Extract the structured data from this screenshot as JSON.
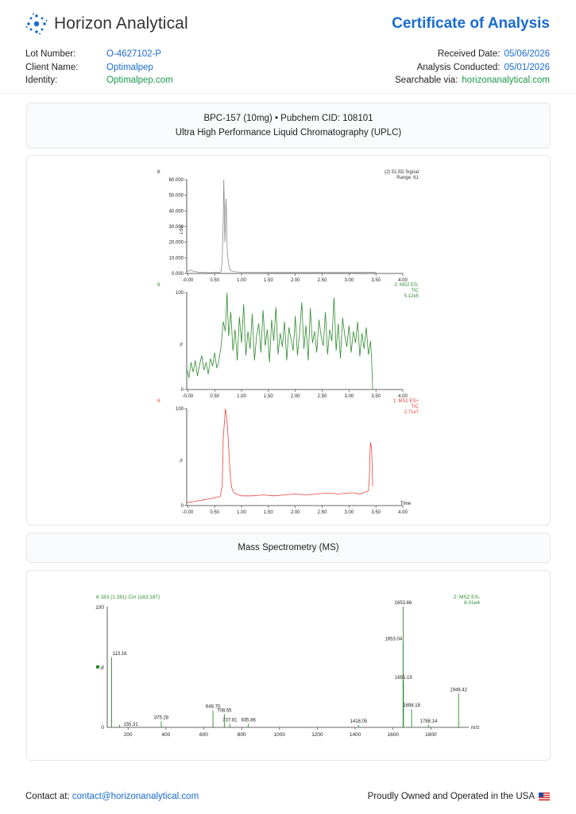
{
  "header": {
    "company": "Horizon Analytical",
    "title": "Certificate of Analysis"
  },
  "meta_left": [
    {
      "label": "Lot Number:",
      "value": "O-4627102-P"
    },
    {
      "label": "Client Name:",
      "value": "Optimalpep"
    },
    {
      "label": "Identity:",
      "value": "Optimalpep.com"
    }
  ],
  "meta_right": [
    {
      "label": "Received Date:",
      "value": "05/06/2026"
    },
    {
      "label": "Analysis Conducted:",
      "value": "05/01/2026"
    },
    {
      "label": "Searchable via:",
      "value": "horizonanalytical.com"
    }
  ],
  "sample": {
    "line1": "BPC-157 (10mg) • Pubchem CID: 108101",
    "line2": "Ultra High Performance Liquid Chromatography (UPLC)"
  },
  "ms_title": "Mass Spectrometry (MS)",
  "footer": {
    "contact_label": "Contact at:",
    "contact_email": "contact@horizonanalytical.com",
    "tagline": "Proudly Owned and Operated in the USA"
  },
  "colors": {
    "accent": "#1a6bd1",
    "green": "#1a9a4a",
    "elsd": "#8a8a8a",
    "ms_neg": "#2e8b2e",
    "ms_pos": "#e8453c"
  },
  "chart_data": [
    {
      "type": "line",
      "panel_number": "6",
      "legend": [
        "(2) ELSD Signal",
        "Range: 61"
      ],
      "ylabel": "LSU",
      "x_ticks": [
        "-0.00",
        "0.50",
        "1.00",
        "1.50",
        "2.00",
        "2.50",
        "3.00",
        "3.50",
        "4.00"
      ],
      "y_ticks": [
        "0.000",
        "10.000",
        "20.000",
        "30.000",
        "40.000",
        "50.000",
        "60.000"
      ],
      "xlim": [
        -0.02,
        4.0
      ],
      "ylim": [
        0,
        60
      ],
      "series": [
        {
          "x": [
            -0.02,
            0.05,
            0.1,
            0.2,
            0.3,
            0.4,
            0.45,
            0.5,
            0.55,
            0.6,
            0.62,
            0.64,
            0.66,
            0.67,
            0.68,
            0.69,
            0.7,
            0.71,
            0.72,
            0.73,
            0.74,
            0.76,
            0.78,
            0.8,
            0.85,
            0.9,
            1.0,
            1.2,
            1.5,
            2.0,
            2.5,
            3.0,
            3.3,
            3.4,
            3.45,
            3.5
          ],
          "y": [
            1,
            2.2,
            1.5,
            0.8,
            0.6,
            0.5,
            0.5,
            0.8,
            0.6,
            0.6,
            1.5,
            8,
            35,
            60,
            42,
            20,
            30,
            48,
            38,
            20,
            12,
            6,
            3,
            1.8,
            1.2,
            1,
            0.8,
            0.7,
            0.6,
            0.6,
            0.6,
            0.6,
            0.6,
            0.8,
            0.6,
            0.6
          ]
        }
      ]
    },
    {
      "type": "line",
      "panel_number": "6",
      "legend": [
        "2: MS2 ES-",
        "TIC",
        "5.12e5"
      ],
      "ylabel": "%",
      "x_ticks": [
        "-0.00",
        "0.50",
        "1.00",
        "1.50",
        "2.00",
        "2.50",
        "3.00",
        "3.50",
        "4.00"
      ],
      "y_ticks": [
        "0",
        "100"
      ],
      "xlim": [
        -0.02,
        4.0
      ],
      "ylim": [
        0,
        100
      ],
      "series": [
        {
          "x": [
            -0.02,
            0.02,
            0.06,
            0.1,
            0.14,
            0.18,
            0.22,
            0.26,
            0.3,
            0.34,
            0.38,
            0.42,
            0.46,
            0.5,
            0.54,
            0.58,
            0.62,
            0.66,
            0.7,
            0.73,
            0.76,
            0.8,
            0.84,
            0.88,
            0.92,
            0.96,
            1.0,
            1.04,
            1.08,
            1.12,
            1.16,
            1.2,
            1.24,
            1.28,
            1.32,
            1.36,
            1.4,
            1.44,
            1.48,
            1.52,
            1.56,
            1.6,
            1.64,
            1.68,
            1.72,
            1.76,
            1.8,
            1.84,
            1.88,
            1.92,
            1.96,
            2.0,
            2.04,
            2.08,
            2.12,
            2.16,
            2.2,
            2.24,
            2.28,
            2.32,
            2.36,
            2.4,
            2.44,
            2.48,
            2.52,
            2.56,
            2.6,
            2.64,
            2.68,
            2.72,
            2.76,
            2.8,
            2.84,
            2.88,
            2.92,
            2.96,
            3.0,
            3.04,
            3.08,
            3.12,
            3.16,
            3.2,
            3.24,
            3.28,
            3.32,
            3.36,
            3.4,
            3.42,
            3.44
          ],
          "y": [
            22,
            12,
            28,
            18,
            30,
            14,
            25,
            35,
            20,
            28,
            16,
            32,
            24,
            38,
            22,
            30,
            45,
            70,
            60,
            100,
            55,
            80,
            40,
            62,
            30,
            75,
            48,
            88,
            35,
            60,
            42,
            78,
            30,
            55,
            68,
            38,
            82,
            45,
            62,
            28,
            72,
            50,
            85,
            36,
            58,
            44,
            70,
            30,
            64,
            52,
            40,
            76,
            35,
            58,
            90,
            42,
            66,
            30,
            84,
            48,
            60,
            38,
            72,
            55,
            45,
            80,
            36,
            62,
            50,
            95,
            40,
            68,
            32,
            74,
            56,
            44,
            66,
            38,
            60,
            48,
            70,
            34,
            58,
            42,
            64,
            36,
            50,
            30,
            0
          ]
        }
      ]
    },
    {
      "type": "line",
      "panel_number": "6",
      "legend": [
        "1: MS2 ES+",
        "TIC",
        "2.71e7"
      ],
      "ylabel": "%",
      "xlabel": "Time",
      "x_ticks": [
        "-0.00",
        "0.50",
        "1.00",
        "1.50",
        "2.00",
        "2.50",
        "3.00",
        "3.50",
        "4.00"
      ],
      "y_ticks": [
        "0",
        "100"
      ],
      "xlim": [
        -0.02,
        4.0
      ],
      "ylim": [
        0,
        100
      ],
      "series": [
        {
          "x": [
            -0.02,
            0.1,
            0.2,
            0.3,
            0.4,
            0.5,
            0.55,
            0.6,
            0.64,
            0.66,
            0.68,
            0.7,
            0.72,
            0.74,
            0.76,
            0.78,
            0.8,
            0.82,
            0.85,
            0.9,
            0.95,
            1.0,
            1.2,
            1.4,
            1.6,
            1.8,
            2.0,
            2.2,
            2.4,
            2.6,
            2.8,
            3.0,
            3.1,
            3.2,
            3.3,
            3.36,
            3.38,
            3.39,
            3.4,
            3.42,
            3.44
          ],
          "y": [
            3,
            4,
            5,
            6,
            7,
            8,
            9,
            9,
            20,
            70,
            85,
            100,
            92,
            80,
            60,
            40,
            25,
            18,
            14,
            12,
            11,
            10,
            10,
            11,
            10,
            11,
            12,
            11,
            12,
            13,
            12,
            13,
            13,
            12,
            14,
            15,
            30,
            55,
            65,
            58,
            20
          ]
        }
      ]
    },
    {
      "type": "bar",
      "header": "6 183 (1.281) Cm (183:187)",
      "legend": [
        "2: MS2 ES-",
        "6.01e4"
      ],
      "ylabel": "%",
      "xlabel": "m/z",
      "x_ticks": [
        "200",
        "400",
        "600",
        "800",
        "1000",
        "1200",
        "1400",
        "1600",
        "1800"
      ],
      "y_ticks": [
        "0",
        "100"
      ],
      "xlim": [
        90,
        2000
      ],
      "ylim": [
        0,
        100
      ],
      "peaks": [
        {
          "mz": 113.16,
          "label": "113.16",
          "intensity": 58
        },
        {
          "mz": 155.31,
          "label": "155.31",
          "intensity": 2
        },
        {
          "mz": 375.28,
          "label": "375.28",
          "intensity": 5
        },
        {
          "mz": 648.7,
          "label": "648.70",
          "intensity": 14
        },
        {
          "mz": 708.55,
          "label": "708.55",
          "intensity": 11
        },
        {
          "mz": 737.81,
          "label": "737.81",
          "intensity": 3
        },
        {
          "mz": 835.86,
          "label": "835.86",
          "intensity": 3
        },
        {
          "mz": 1418.05,
          "label": "1418.05",
          "intensity": 2
        },
        {
          "mz": 1653.04,
          "label": "1653.04",
          "intensity": 70
        },
        {
          "mz": 1653.66,
          "label": "1653.66",
          "intensity": 100
        },
        {
          "mz": 1655.19,
          "label": "1655.19",
          "intensity": 38
        },
        {
          "mz": 1698.18,
          "label": "1698.18",
          "intensity": 15
        },
        {
          "mz": 1788.14,
          "label": "1788.14",
          "intensity": 2
        },
        {
          "mz": 1946.42,
          "label": "1946.42",
          "intensity": 28
        }
      ]
    }
  ]
}
